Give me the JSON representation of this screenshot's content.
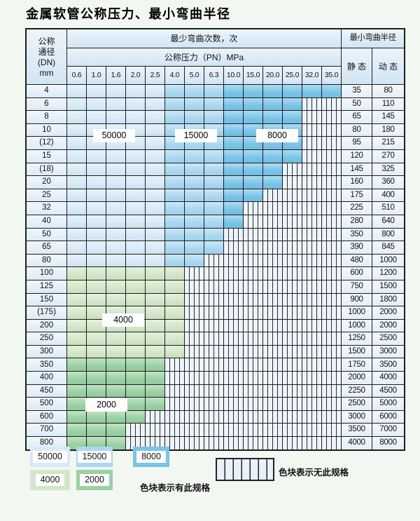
{
  "title": "金属软管公称压力、最小弯曲半径",
  "table": {
    "dn_header_lines": [
      "公称",
      "通径",
      "(DN)",
      "mm"
    ],
    "bend_cycles_header": "最少弯曲次数，次",
    "pressure_header": "公称压力（PN）MPa",
    "radius_header": "最小弯曲半径",
    "static_header": "静 态",
    "dynamic_header": "动 态",
    "pressure_columns": [
      "0.6",
      "1.0",
      "1.6",
      "2.0",
      "2.5",
      "4.0",
      "5.0",
      "6.3",
      "10.0",
      "15.0",
      "20.0",
      "25.0",
      "32.0",
      "35.0"
    ],
    "blue_zones": [
      {
        "upto": 5,
        "color": "c50000"
      },
      {
        "upto": 8,
        "color": "c15000"
      },
      {
        "upto": 14,
        "color": "c8000"
      }
    ],
    "rows": [
      {
        "dn": "4",
        "static": "35",
        "dynamic": "80",
        "colored": 14,
        "group": "blue"
      },
      {
        "dn": "6",
        "static": "50",
        "dynamic": "110",
        "colored": 12,
        "group": "blue"
      },
      {
        "dn": "8",
        "static": "65",
        "dynamic": "145",
        "colored": 12,
        "group": "blue"
      },
      {
        "dn": "10",
        "static": "80",
        "dynamic": "180",
        "colored": 12,
        "group": "blue"
      },
      {
        "dn": "(12)",
        "static": "95",
        "dynamic": "215",
        "colored": 12,
        "group": "blue"
      },
      {
        "dn": "15",
        "static": "120",
        "dynamic": "270",
        "colored": 12,
        "group": "blue"
      },
      {
        "dn": "(18)",
        "static": "145",
        "dynamic": "325",
        "colored": 11,
        "group": "blue"
      },
      {
        "dn": "20",
        "static": "160",
        "dynamic": "360",
        "colored": 11,
        "group": "blue"
      },
      {
        "dn": "25",
        "static": "175",
        "dynamic": "400",
        "colored": 10,
        "group": "blue"
      },
      {
        "dn": "32",
        "static": "225",
        "dynamic": "510",
        "colored": 9,
        "group": "blue"
      },
      {
        "dn": "40",
        "static": "280",
        "dynamic": "640",
        "colored": 9,
        "group": "blue"
      },
      {
        "dn": "50",
        "static": "350",
        "dynamic": "800",
        "colored": 8,
        "group": "blue"
      },
      {
        "dn": "65",
        "static": "390",
        "dynamic": "845",
        "colored": 8,
        "group": "blue"
      },
      {
        "dn": "80",
        "static": "480",
        "dynamic": "1000",
        "colored": 7,
        "group": "blue"
      },
      {
        "dn": "100",
        "static": "600",
        "dynamic": "1200",
        "colored": 6,
        "group": "g4000"
      },
      {
        "dn": "125",
        "static": "750",
        "dynamic": "1500",
        "colored": 6,
        "group": "g4000"
      },
      {
        "dn": "150",
        "static": "900",
        "dynamic": "1800",
        "colored": 6,
        "group": "g4000"
      },
      {
        "dn": "(175)",
        "static": "1000",
        "dynamic": "2000",
        "colored": 6,
        "group": "g4000"
      },
      {
        "dn": "200",
        "static": "1000",
        "dynamic": "2000",
        "colored": 6,
        "group": "g4000"
      },
      {
        "dn": "250",
        "static": "1250",
        "dynamic": "2500",
        "colored": 6,
        "group": "g4000"
      },
      {
        "dn": "300",
        "static": "1500",
        "dynamic": "3000",
        "colored": 6,
        "group": "g4000"
      },
      {
        "dn": "350",
        "static": "1750",
        "dynamic": "3500",
        "colored": 5,
        "group": "g2000"
      },
      {
        "dn": "400",
        "static": "2000",
        "dynamic": "4000",
        "colored": 5,
        "group": "g2000"
      },
      {
        "dn": "450",
        "static": "2250",
        "dynamic": "4500",
        "colored": 5,
        "group": "g2000"
      },
      {
        "dn": "500",
        "static": "2500",
        "dynamic": "5000",
        "colored": 5,
        "group": "g2000"
      },
      {
        "dn": "600",
        "static": "3000",
        "dynamic": "6000",
        "colored": 4,
        "group": "g2000"
      },
      {
        "dn": "700",
        "static": "3500",
        "dynamic": "7000",
        "colored": 3,
        "group": "g2000"
      },
      {
        "dn": "800",
        "static": "4000",
        "dynamic": "8000",
        "colored": 3,
        "group": "g2000"
      }
    ],
    "overlay_labels": [
      "50000",
      "15000",
      "8000",
      "4000",
      "2000"
    ]
  },
  "colors": {
    "c50000": "#d7eaf8",
    "c15000": "#a9d8f1",
    "c8000": "#79c4e9",
    "c4000": "#d3e7c8",
    "c2000": "#9ad1a2",
    "hatch_bg": "#edf4fb",
    "grid_line": "#1d1d1d"
  },
  "legend": {
    "present_items": [
      {
        "label": "50000",
        "color": "c50000"
      },
      {
        "label": "15000",
        "color": "c15000"
      },
      {
        "label": "8000",
        "color": "c8000"
      },
      {
        "label": "4000",
        "color": "c4000"
      },
      {
        "label": "2000",
        "color": "c2000"
      }
    ],
    "present_text": "色块表示有此规格",
    "absent_text": "色块表示无此规格"
  }
}
